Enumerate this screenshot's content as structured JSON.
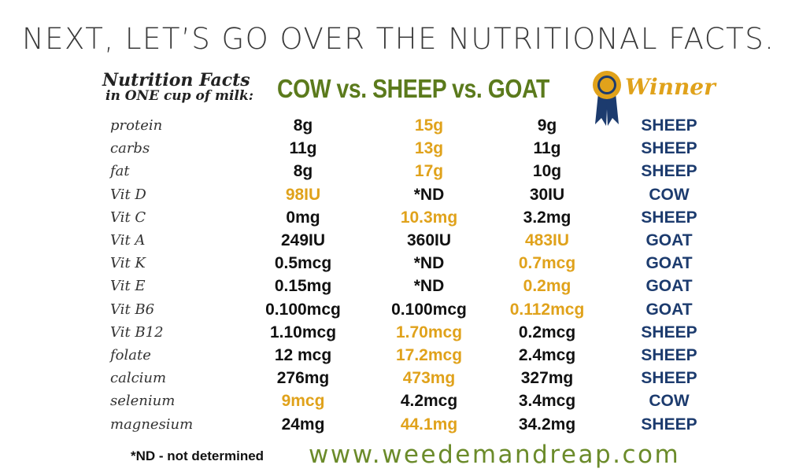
{
  "headline": "NEXT, LET’S GO OVER THE NUTRITIONAL FACTS.",
  "intro_line1": "Nutrition Facts",
  "intro_line2": "in ONE cup of milk:",
  "title": "COW vs. SHEEP vs. GOAT",
  "winner_header": "Winner",
  "colors": {
    "highlight": "#e0a21b",
    "winner_text": "#1c3b6e",
    "title_green": "#5b7a1c",
    "site_green": "#6b8b2a",
    "ribbon_blue": "#1c3b6e",
    "medal_gold": "#e0a21b"
  },
  "rows": [
    {
      "nutrient": "protein",
      "cow": "8g",
      "sheep": "15g",
      "goat": "9g",
      "winner": "SHEEP"
    },
    {
      "nutrient": "carbs",
      "cow": "11g",
      "sheep": "13g",
      "goat": "11g",
      "winner": "SHEEP"
    },
    {
      "nutrient": "fat",
      "cow": "8g",
      "sheep": "17g",
      "goat": "10g",
      "winner": "SHEEP"
    },
    {
      "nutrient": "Vit D",
      "cow": "98IU",
      "sheep": "*ND",
      "goat": "30IU",
      "winner": "COW"
    },
    {
      "nutrient": "Vit C",
      "cow": "0mg",
      "sheep": "10.3mg",
      "goat": "3.2mg",
      "winner": "SHEEP"
    },
    {
      "nutrient": "Vit A",
      "cow": "249IU",
      "sheep": "360IU",
      "goat": "483IU",
      "winner": "GOAT"
    },
    {
      "nutrient": "Vit K",
      "cow": "0.5mcg",
      "sheep": "*ND",
      "goat": "0.7mcg",
      "winner": "GOAT"
    },
    {
      "nutrient": "Vit E",
      "cow": "0.15mg",
      "sheep": "*ND",
      "goat": "0.2mg",
      "winner": "GOAT"
    },
    {
      "nutrient": "Vit B6",
      "cow": "0.100mcg",
      "sheep": "0.100mcg",
      "goat": "0.112mcg",
      "winner": "GOAT"
    },
    {
      "nutrient": "Vit B12",
      "cow": "1.10mcg",
      "sheep": "1.70mcg",
      "goat": "0.2mcg",
      "winner": "SHEEP"
    },
    {
      "nutrient": "folate",
      "cow": "12 mcg",
      "sheep": "17.2mcg",
      "goat": "2.4mcg",
      "winner": "SHEEP"
    },
    {
      "nutrient": "calcium",
      "cow": "276mg",
      "sheep": "473mg",
      "goat": "327mg",
      "winner": "SHEEP"
    },
    {
      "nutrient": "selenium",
      "cow": "9mcg",
      "sheep": "4.2mcg",
      "goat": "3.4mcg",
      "winner": "COW"
    },
    {
      "nutrient": "magnesium",
      "cow": "24mg",
      "sheep": "44.1mg",
      "goat": "34.2mg",
      "winner": "SHEEP"
    }
  ],
  "footnote": "*ND - not determined",
  "website": "www.weedemandreap.com",
  "icons": [
    "award-ribbon-icon"
  ]
}
